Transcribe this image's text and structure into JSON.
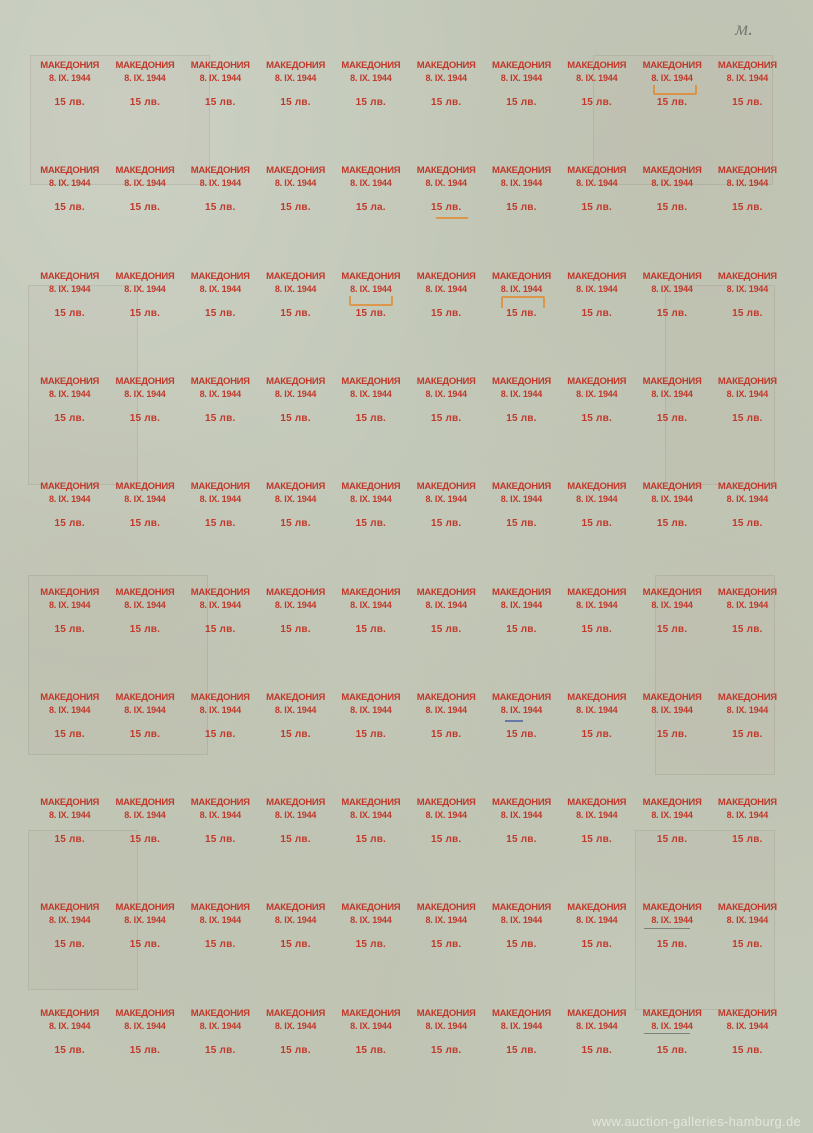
{
  "sheet": {
    "rows": 10,
    "cols": 10,
    "line1": "МАКЕДОНИЯ",
    "line2": "8. IX. 1944",
    "line3": "15 лв.",
    "text_color": "#c0392b",
    "background_color": "#c2c8b8",
    "fontsize_line1": 9.5,
    "fontsize_line2": 9,
    "fontsize_line3": 10,
    "variants": {
      "2_5_line3": "15 ла."
    }
  },
  "annotations": {
    "orange_marks": [
      {
        "row": 1,
        "col": 9,
        "comment": "bracket under 8.IX.1944"
      },
      {
        "row": 3,
        "col": 5,
        "comment": "bracket under 8.IX.1944"
      },
      {
        "row": 3,
        "col": 7,
        "comment": "bracket around 8.IX.1944"
      }
    ],
    "orange_underline_row2_col6": true,
    "blue_marks": [
      {
        "row": 7,
        "col": 7
      }
    ],
    "pencil_underlines": [
      {
        "row": 9,
        "col": 9
      },
      {
        "row": 10,
        "col": 9
      }
    ],
    "top_right_signature": "м.",
    "orange_color": "#e6821e",
    "blue_color": "#2846a0"
  },
  "watermark": "www.auction-galleries-hamburg.de"
}
